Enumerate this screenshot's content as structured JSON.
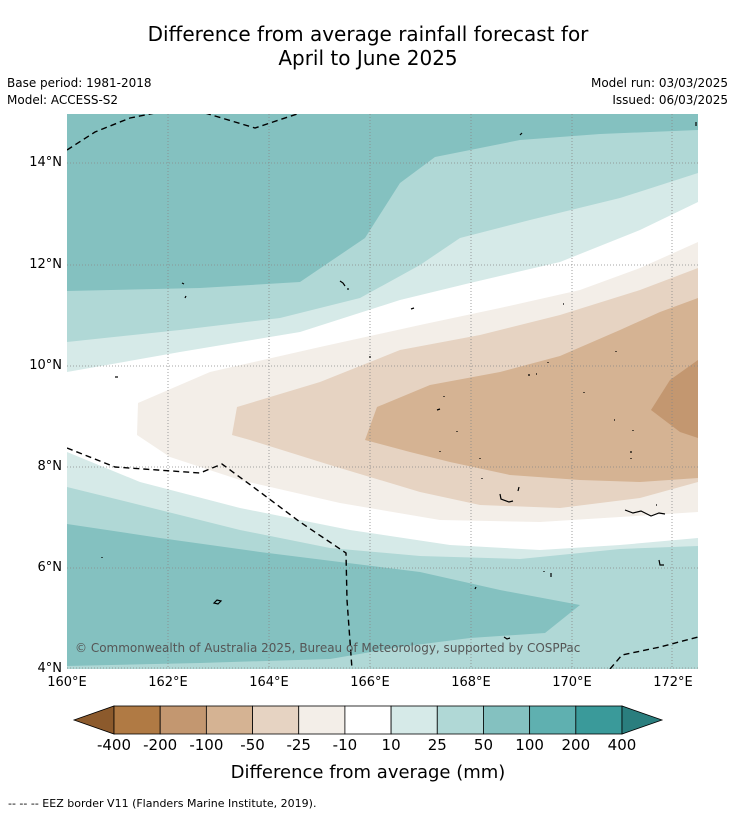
{
  "title": {
    "line1": "Difference from average rainfall forecast for",
    "line2": "April to June 2025"
  },
  "meta": {
    "base_period": "Base period: 1981-2018",
    "model": "Model: ACCESS-S2",
    "model_run": "Model run: 03/03/2025",
    "issued": "Issued: 06/03/2025"
  },
  "map": {
    "lat_labels": [
      "14°N",
      "12°N",
      "10°N",
      "8°N",
      "6°N",
      "4°N"
    ],
    "lon_labels": [
      "160°E",
      "162°E",
      "164°E",
      "166°E",
      "168°E",
      "170°E",
      "172°E"
    ],
    "copyright": "© Commonwealth of Australia 2025, Bureau of Meteorology, supported by COSPPac",
    "border_style": "dashed"
  },
  "colorbar": {
    "labels": [
      "-400",
      "-200",
      "-100",
      "-50",
      "-25",
      "-10",
      "10",
      "25",
      "50",
      "100",
      "200",
      "400"
    ],
    "colors": [
      "#8c5a2c",
      "#b07a44",
      "#c39770",
      "#d5b393",
      "#e6d3c2",
      "#f3eee8",
      "#ffffff",
      "#d6eae8",
      "#b0d8d6",
      "#84c1c0",
      "#5fb0b0",
      "#3a9a9a",
      "#2a7e7e"
    ],
    "title": "Difference from average (mm)"
  },
  "footnote": "--  --  -- EEZ border V11 (Flanders Marine Institute, 2019)."
}
